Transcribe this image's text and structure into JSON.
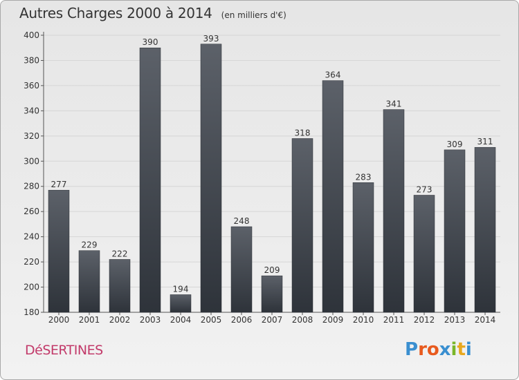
{
  "header": {
    "title": "Autres Charges 2000 à 2014",
    "unit": "(en milliers d'€)"
  },
  "footer": {
    "commune": "DéSERTINES",
    "brand": "Proxiti"
  },
  "colors": {
    "bar_top": "#5c6169",
    "bar_bottom": "#2e333a",
    "commune": "#c23a6a",
    "logo_letters": [
      "#3a8fd0",
      "#e85a1e",
      "#e85a1e",
      "#3a8fd0",
      "#7ab629",
      "#e8a81e",
      "#3a8fd0"
    ]
  },
  "chart_data": {
    "type": "bar",
    "title": "Autres Charges 2000 à 2014",
    "unit_label": "(en milliers d'€)",
    "categories": [
      "2000",
      "2001",
      "2002",
      "2003",
      "2004",
      "2005",
      "2006",
      "2007",
      "2008",
      "2009",
      "2010",
      "2011",
      "2012",
      "2013",
      "2014"
    ],
    "values": [
      277,
      229,
      222,
      390,
      194,
      393,
      248,
      209,
      318,
      364,
      283,
      341,
      273,
      309,
      311
    ],
    "ylim": [
      180,
      400
    ],
    "yticks": [
      180,
      200,
      220,
      240,
      260,
      280,
      300,
      320,
      340,
      360,
      380,
      400
    ],
    "grid": true,
    "legend": "none"
  }
}
